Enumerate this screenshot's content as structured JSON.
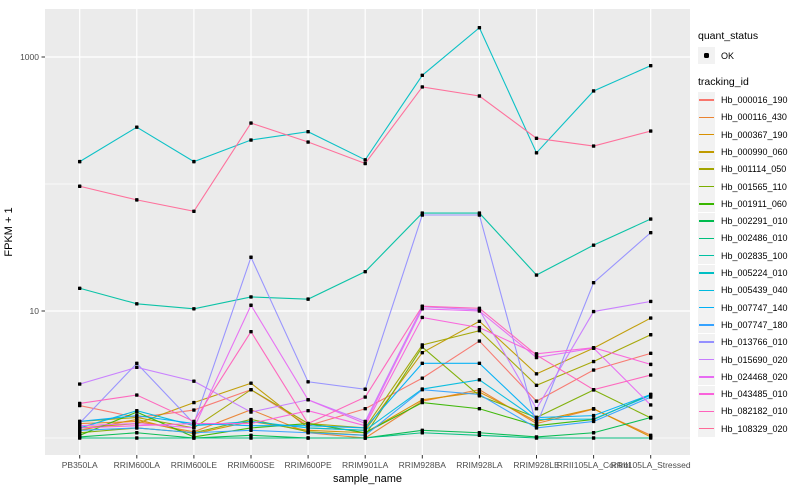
{
  "chart_data": {
    "type": "line",
    "title": "",
    "xlabel": "sample_name",
    "ylabel": "FPKM + 1",
    "x_categories": [
      "PB350LA",
      "RRIM600LA",
      "RRIM600LE",
      "RRIM600SE",
      "RRIM600PE",
      "RRIM901LA",
      "RRIM928BA",
      "RRIM928LA",
      "RRIM928LE",
      "RRII105LA_Control",
      "RRII105LA_Stressed"
    ],
    "y_scale": "log10",
    "y_ticks": [
      {
        "value": 10,
        "label": "10"
      },
      {
        "value": 1000,
        "label": "1000"
      }
    ],
    "y_minor_breaks": [
      1,
      100
    ],
    "ylim": [
      0.8,
      2400
    ],
    "panel_bg": "#ebebeb",
    "grid_color": "#ffffff",
    "point_color": "#000000",
    "axis_text_color": "#4d4d4d",
    "legend": {
      "quant_status": {
        "title": "quant_status",
        "items": [
          {
            "label": "OK",
            "marker": "point"
          }
        ]
      },
      "tracking_id_title": "tracking_id"
    },
    "series": [
      {
        "tracking_id": "Hb_000016_190",
        "color": "#F8766D",
        "values": [
          1.8,
          1.45,
          1.66,
          2.4,
          1.25,
          1.7,
          2.96,
          5.8,
          1.95,
          3.43,
          4.64
        ]
      },
      {
        "tracking_id": "Hb_000116_430",
        "color": "#EA8331",
        "values": [
          1.3,
          1.35,
          1.12,
          1.67,
          1.1,
          1.0,
          1.95,
          2.4,
          1.3,
          1.69,
          1.05
        ]
      },
      {
        "tracking_id": "Hb_000367_190",
        "color": "#D89000",
        "values": [
          1.15,
          1.4,
          1.08,
          1.35,
          1.15,
          1.1,
          2.0,
          2.3,
          1.35,
          1.7,
          1.02
        ]
      },
      {
        "tracking_id": "Hb_000990_060",
        "color": "#C09B00",
        "values": [
          1.2,
          1.3,
          1.9,
          2.7,
          1.2,
          1.15,
          4.7,
          8.3,
          3.2,
          5.1,
          8.8
        ]
      },
      {
        "tracking_id": "Hb_001114_050",
        "color": "#A3A500",
        "values": [
          1.35,
          1.45,
          1.2,
          2.4,
          1.3,
          1.2,
          5.4,
          7.0,
          2.6,
          4.0,
          6.5
        ]
      },
      {
        "tracking_id": "Hb_001565_110",
        "color": "#7CAE00",
        "values": [
          1.1,
          1.2,
          1.1,
          1.4,
          1.12,
          1.05,
          5.2,
          2.15,
          1.45,
          2.39,
          1.44
        ]
      },
      {
        "tracking_id": "Hb_001911_060",
        "color": "#39B600",
        "values": [
          1.05,
          1.6,
          1.02,
          1.2,
          1.3,
          1.1,
          1.9,
          1.7,
          1.25,
          1.4,
          2.2
        ]
      },
      {
        "tracking_id": "Hb_002291_010",
        "color": "#00BB4E",
        "values": [
          1.02,
          1.1,
          1.0,
          1.05,
          1.0,
          1.0,
          1.15,
          1.1,
          1.02,
          1.1,
          1.45
        ]
      },
      {
        "tracking_id": "Hb_002486_010",
        "color": "#00BF7D",
        "values": [
          1.0,
          1.0,
          1.0,
          1.0,
          1.0,
          1.0,
          1.1,
          1.05,
          1.0,
          1.0,
          1.0
        ]
      },
      {
        "tracking_id": "Hb_002835_100",
        "color": "#00C1A3",
        "values": [
          15.1,
          11.4,
          10.4,
          12.9,
          12.4,
          20.4,
          59,
          59,
          19.2,
          33,
          53
        ]
      },
      {
        "tracking_id": "Hb_005224_010",
        "color": "#00BFC4",
        "values": [
          150,
          280,
          150,
          222,
          258,
          155,
          718,
          1700,
          176,
          540,
          855
        ]
      },
      {
        "tracking_id": "Hb_005439_040",
        "color": "#00BADE",
        "values": [
          1.2,
          1.64,
          1.25,
          1.35,
          1.2,
          1.15,
          2.43,
          2.87,
          1.4,
          1.41,
          2.17
        ]
      },
      {
        "tracking_id": "Hb_007747_140",
        "color": "#00B0F6",
        "values": [
          1.35,
          1.5,
          1.3,
          1.25,
          1.25,
          1.2,
          3.87,
          3.87,
          1.45,
          1.5,
          2.2
        ]
      },
      {
        "tracking_id": "Hb_007747_180",
        "color": "#35A2FF",
        "values": [
          1.15,
          1.2,
          1.1,
          1.15,
          1.1,
          1.05,
          2.4,
          2.2,
          1.2,
          1.35,
          2.1
        ]
      },
      {
        "tracking_id": "Hb_013766_010",
        "color": "#9590FF",
        "values": [
          1.31,
          3.87,
          1.3,
          26.5,
          2.77,
          2.42,
          57,
          57,
          1.26,
          16.7,
          41.4
        ]
      },
      {
        "tracking_id": "Hb_015690_020",
        "color": "#C77CFF",
        "values": [
          2.66,
          3.6,
          2.8,
          1.6,
          2.0,
          1.35,
          10.8,
          10.2,
          1.7,
          9.9,
          11.9
        ]
      },
      {
        "tracking_id": "Hb_024468_020",
        "color": "#E76BF3",
        "values": [
          1.25,
          1.3,
          1.2,
          11.1,
          2.0,
          1.3,
          10.4,
          10.0,
          4.3,
          5.1,
          1.82
        ]
      },
      {
        "tracking_id": "Hb_043485_010",
        "color": "#FA62DB",
        "values": [
          1.2,
          1.25,
          1.3,
          1.3,
          1.64,
          1.25,
          8.9,
          7.4,
          4.6,
          5.14,
          3.8
        ]
      },
      {
        "tracking_id": "Hb_082182_010",
        "color": "#FF62BC",
        "values": [
          1.87,
          2.18,
          1.35,
          6.87,
          1.3,
          2.1,
          10.9,
          10.5,
          4.5,
          2.4,
          3.13
        ]
      },
      {
        "tracking_id": "Hb_108329_020",
        "color": "#FF6A98",
        "values": [
          96,
          75,
          61,
          302,
          214,
          145,
          581,
          493,
          229,
          199,
          261
        ]
      }
    ]
  }
}
